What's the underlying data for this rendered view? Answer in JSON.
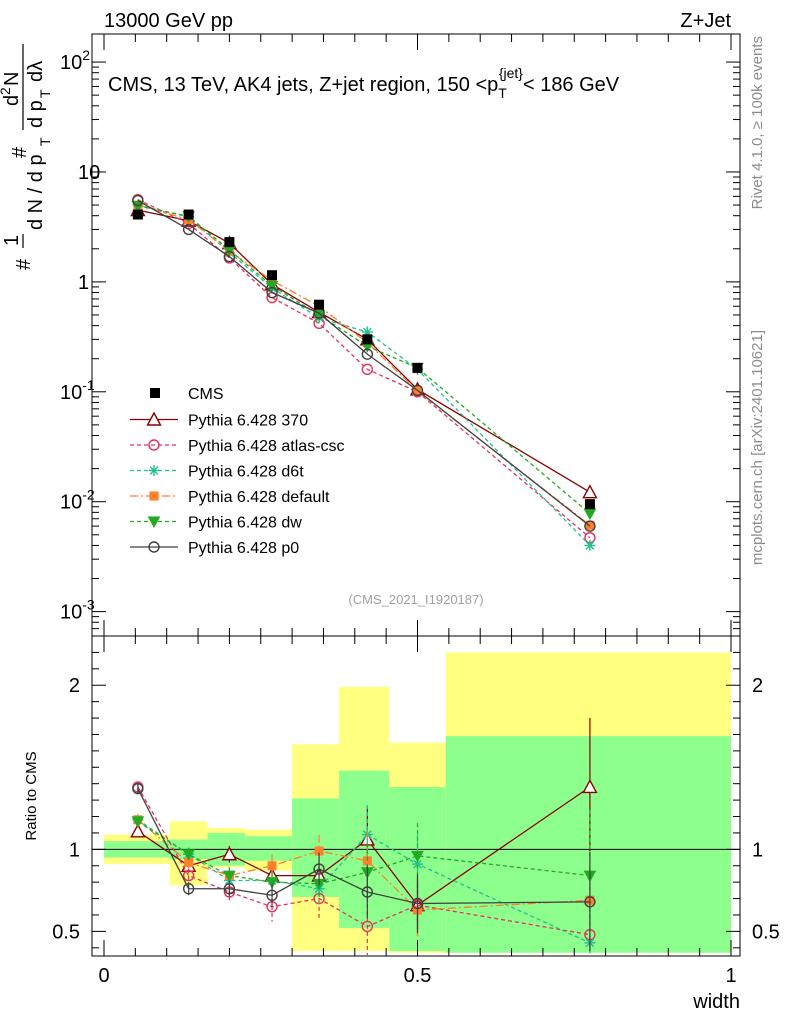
{
  "header": {
    "left": "13000 GeV pp",
    "right": "Z+Jet"
  },
  "side_labels": {
    "rivet": "Rivet 4.1.0, ≥ 100k events",
    "mcplots": "mcplots.cern.ch [arXiv:2401.10621]"
  },
  "chart_data": {
    "type": "line",
    "title": "CMS, 13 TeV, AK4 jets, Z+jet region, 150 <p",
    "title_sub": "T",
    "title_sup": "{jet}",
    "title_end": "< 186 GeV",
    "watermark": "(CMS_2021_I1920187)",
    "xlabel": "width",
    "ylabel_top": "d N / d p",
    "ylabel_ratio": "Ratio to CMS",
    "xlim": [
      0,
      1
    ],
    "ylim": [
      0.0006,
      180
    ],
    "ratio_ylim": [
      0.35,
      2.3
    ],
    "x_ticks": [
      "0",
      "0.5",
      "1"
    ],
    "y_ticks": [
      {
        "base": "10",
        "exp": "-3",
        "v": 0.001
      },
      {
        "base": "10",
        "exp": "-2",
        "v": 0.01
      },
      {
        "base": "10",
        "exp": "-1",
        "v": 0.1
      },
      {
        "base": "1",
        "exp": "",
        "v": 1
      },
      {
        "base": "10",
        "exp": "",
        "v": 10
      },
      {
        "base": "10",
        "exp": "2",
        "v": 100
      }
    ],
    "ratio_ticks": [
      "0.5",
      "1",
      "2"
    ],
    "bin_edges": [
      0,
      0.1,
      0.15,
      0.2,
      0.25,
      0.3,
      0.35,
      0.4,
      0.45,
      0.5,
      0.6,
      1
    ],
    "x": [
      0.054,
      0.135,
      0.2,
      0.268,
      0.343,
      0.42,
      0.5,
      0.775
    ],
    "cms": {
      "name": "CMS",
      "values": [
        4.1,
        4.1,
        2.3,
        1.15,
        0.62,
        0.3,
        0.165,
        0.0095
      ]
    },
    "bands": [
      {
        "x0": 0.0,
        "x1": 0.105,
        "yl": 0.91,
        "yh": 1.09,
        "gl": 0.95,
        "gh": 1.05
      },
      {
        "x0": 0.105,
        "x1": 0.165,
        "yl": 0.78,
        "yh": 1.17,
        "gl": 0.94,
        "gh": 1.06
      },
      {
        "x0": 0.165,
        "x1": 0.225,
        "yl": 0.89,
        "yh": 1.13,
        "gl": 0.9,
        "gh": 1.1
      },
      {
        "x0": 0.225,
        "x1": 0.3,
        "yl": 0.87,
        "yh": 1.12,
        "gl": 0.93,
        "gh": 1.08
      },
      {
        "x0": 0.3,
        "x1": 0.375,
        "yl": 0.38,
        "yh": 1.64,
        "gl": 0.71,
        "gh": 1.31
      },
      {
        "x0": 0.375,
        "x1": 0.455,
        "yl": 0.38,
        "yh": 1.99,
        "gl": 0.52,
        "gh": 1.48
      },
      {
        "x0": 0.455,
        "x1": 0.545,
        "yl": 0.37,
        "yh": 1.65,
        "gl": 0.38,
        "gh": 1.38
      },
      {
        "x0": 0.545,
        "x1": 1.0,
        "yl": 0.37,
        "yh": 2.2,
        "gl": 0.37,
        "gh": 1.69
      }
    ],
    "series": [
      {
        "name": "Pythia 6.428 370",
        "color": "#8b0000",
        "dash": "",
        "marker": "triangle",
        "values": [
          4.5,
          3.6,
          2.25,
          0.95,
          0.53,
          0.3,
          0.105,
          0.0122
        ],
        "ratio": [
          1.11,
          0.9,
          0.97,
          0.84,
          0.84,
          1.06,
          0.66,
          1.38
        ],
        "ratio_err": [
          0.03,
          0.04,
          0.05,
          0.06,
          0.06,
          0.2,
          0.15,
          0.42
        ]
      },
      {
        "name": "Pythia 6.428 atlas-csc",
        "color": "#e8305a",
        "dash": "4,3",
        "marker": "circle",
        "values": [
          5.6,
          3.4,
          1.65,
          0.72,
          0.42,
          0.16,
          0.1,
          0.0047
        ],
        "ratio": [
          1.38,
          0.84,
          0.74,
          0.65,
          0.7,
          0.53,
          0.66,
          0.48
        ],
        "ratio_err": [
          0.03,
          0.04,
          0.05,
          0.09,
          0.12,
          0.18,
          0.18,
          0.3
        ]
      },
      {
        "name": "Pythia 6.428 d6t",
        "color": "#20c090",
        "dash": "4,3",
        "marker": "star",
        "values": [
          5.0,
          3.9,
          1.85,
          0.88,
          0.47,
          0.35,
          0.16,
          0.004
        ],
        "ratio": [
          1.18,
          0.97,
          0.81,
          0.81,
          0.76,
          1.09,
          0.91,
          0.43
        ],
        "ratio_err": [
          0.03,
          0.04,
          0.05,
          0.06,
          0.1,
          0.18,
          0.18,
          0.3
        ]
      },
      {
        "name": "Pythia 6.428 default",
        "color": "#ff7f2a",
        "dash": "8,3,2,3",
        "marker": "square",
        "values": [
          5.0,
          3.7,
          1.9,
          1.03,
          0.6,
          0.28,
          0.102,
          0.0061
        ],
        "ratio": [
          1.18,
          0.92,
          0.84,
          0.9,
          0.99,
          0.93,
          0.63,
          0.69
        ],
        "ratio_err": [
          0.03,
          0.04,
          0.05,
          0.07,
          0.1,
          0.18,
          0.18,
          0.3
        ]
      },
      {
        "name": "Pythia 6.428 dw",
        "color": "#22aa22",
        "dash": "4,3",
        "marker": "triangle-down",
        "values": [
          4.9,
          3.95,
          1.95,
          0.92,
          0.5,
          0.26,
          0.165,
          0.0078
        ],
        "ratio": [
          1.17,
          0.97,
          0.84,
          0.8,
          0.79,
          0.86,
          0.96,
          0.84
        ],
        "ratio_err": [
          0.03,
          0.04,
          0.05,
          0.06,
          0.08,
          0.18,
          0.2,
          0.4
        ]
      },
      {
        "name": "Pythia 6.428 p0",
        "color": "#404040",
        "dash": "",
        "marker": "circle",
        "values": [
          5.5,
          3.0,
          1.7,
          0.8,
          0.52,
          0.22,
          0.103,
          0.006
        ],
        "ratio": [
          1.37,
          0.76,
          0.76,
          0.72,
          0.88,
          0.74,
          0.67,
          0.68
        ],
        "ratio_err": [
          0.03,
          0.04,
          0.05,
          0.07,
          0.1,
          0.16,
          0.18,
          0.3
        ]
      }
    ]
  }
}
